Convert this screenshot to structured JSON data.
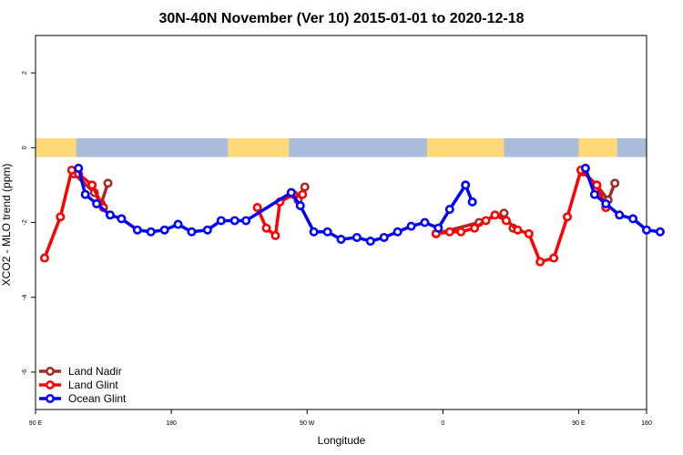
{
  "chart_data": {
    "type": "line",
    "title": "30N-40N November (Ver 10)   2015-01-01 to 2020-12-18",
    "xlabel": "Longitude",
    "ylabel": "XCO2 - MLO trend (ppm)",
    "xlim": [
      -90,
      180
    ],
    "ylim": [
      -7,
      3
    ],
    "x_ticks": [
      {
        "value": -90,
        "label": "90 E"
      },
      {
        "value": -30,
        "label": "180"
      },
      {
        "value": 30,
        "label": "90 W"
      },
      {
        "value": 90,
        "label": "0"
      },
      {
        "value": 150,
        "label": "90 E"
      },
      {
        "value": 210,
        "label": "180"
      }
    ],
    "y_ticks": [
      -6,
      -4,
      -2,
      0,
      2
    ],
    "land_band": {
      "y_range": [
        -0.25,
        0.25
      ],
      "ocean_color": "#a9bcd9",
      "land_color": "#fed97a"
    },
    "series": [
      {
        "name": "Land Nadir",
        "color": "#a52a2a",
        "segments": [
          [
            [
              -73,
              -0.7
            ],
            [
              -64,
              -1.2
            ],
            [
              -61,
              -1.5
            ],
            [
              -58,
              -0.95
            ]
          ],
          [
            [
              23,
              -1.2
            ],
            [
              26,
              -1.4
            ],
            [
              29,
              -1.05
            ]
          ],
          [
            [
              87,
              -2.3
            ],
            [
              106,
              -2.0
            ],
            [
              117,
              -1.75
            ],
            [
              121,
              -2.15
            ]
          ],
          [
            [
              152,
              -0.65
            ],
            [
              158,
              -1.0
            ],
            [
              163,
              -1.4
            ],
            [
              166,
              -0.95
            ]
          ]
        ]
      },
      {
        "name": "Land Glint",
        "color": "#ff0000",
        "segments": [
          [
            [
              -86,
              -2.95
            ],
            [
              -79,
              -1.85
            ],
            [
              -74,
              -0.6
            ],
            [
              -71,
              -0.7
            ],
            [
              -65,
              -1.0
            ],
            [
              -60,
              -1.6
            ]
          ],
          [
            [
              8,
              -1.6
            ],
            [
              12,
              -2.15
            ],
            [
              16,
              -2.35
            ],
            [
              18,
              -1.45
            ],
            [
              24,
              -1.25
            ],
            [
              28,
              -1.25
            ]
          ],
          [
            [
              87,
              -2.3
            ],
            [
              93,
              -2.25
            ],
            [
              98,
              -2.25
            ],
            [
              104,
              -2.15
            ],
            [
              109,
              -1.95
            ],
            [
              113,
              -1.8
            ],
            [
              118,
              -1.95
            ],
            [
              123,
              -2.2
            ],
            [
              128,
              -2.3
            ],
            [
              133,
              -3.05
            ],
            [
              139,
              -2.95
            ],
            [
              145,
              -1.85
            ],
            [
              151,
              -0.6
            ],
            [
              158,
              -1.0
            ],
            [
              162,
              -1.6
            ]
          ]
        ]
      },
      {
        "name": "Ocean Glint",
        "color": "#0000ff",
        "segments": [
          [
            [
              -71,
              -0.55
            ],
            [
              -68,
              -1.25
            ],
            [
              -63,
              -1.5
            ],
            [
              -57,
              -1.8
            ],
            [
              -52,
              -1.9
            ],
            [
              -45,
              -2.2
            ],
            [
              -39,
              -2.25
            ],
            [
              -33,
              -2.2
            ],
            [
              -27,
              -2.05
            ],
            [
              -21,
              -2.25
            ],
            [
              -14,
              -2.2
            ],
            [
              -8,
              -1.95
            ],
            [
              -2,
              -1.95
            ],
            [
              3,
              -1.95
            ],
            [
              23,
              -1.2
            ],
            [
              27,
              -1.55
            ],
            [
              33,
              -2.25
            ],
            [
              39,
              -2.25
            ],
            [
              45,
              -2.45
            ],
            [
              52,
              -2.4
            ],
            [
              58,
              -2.5
            ],
            [
              64,
              -2.4
            ],
            [
              70,
              -2.25
            ],
            [
              76,
              -2.1
            ],
            [
              82,
              -2.0
            ],
            [
              88,
              -2.15
            ],
            [
              93,
              -1.65
            ],
            [
              100,
              -1.0
            ],
            [
              103,
              -1.45
            ]
          ],
          [
            [
              153,
              -0.55
            ],
            [
              157,
              -1.25
            ],
            [
              162,
              -1.5
            ],
            [
              168,
              -1.8
            ],
            [
              174,
              -1.9
            ],
            [
              180,
              -2.2
            ],
            [
              186,
              -2.25
            ]
          ]
        ]
      }
    ],
    "legend": {
      "position": "bottom-left"
    }
  }
}
